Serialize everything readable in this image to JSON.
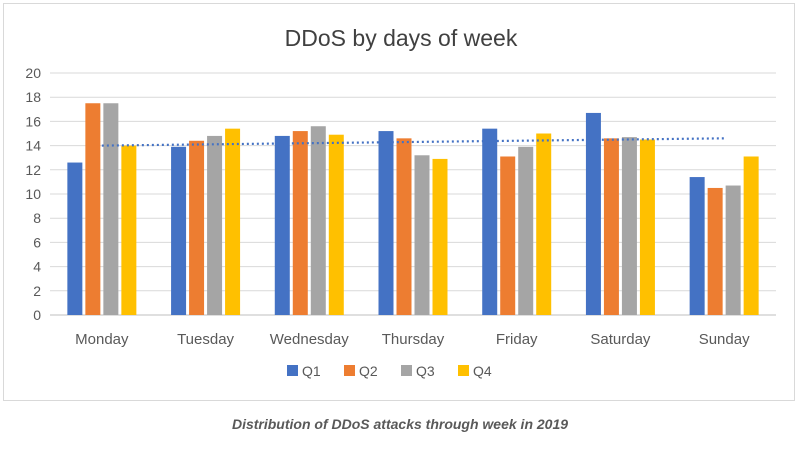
{
  "caption": "Distribution of DDoS attacks through week in 2019",
  "chart_data": {
    "type": "bar",
    "title": "DDoS by days of week",
    "xlabel": "",
    "ylabel": "",
    "categories": [
      "Monday",
      "Tuesday",
      "Wednesday",
      "Thursday",
      "Friday",
      "Saturday",
      "Sunday"
    ],
    "series": [
      {
        "name": "Q1",
        "color": "#4472c4",
        "values": [
          12.6,
          13.9,
          14.8,
          15.2,
          15.4,
          16.7,
          11.4
        ]
      },
      {
        "name": "Q2",
        "color": "#ed7d31",
        "values": [
          17.5,
          14.4,
          15.2,
          14.6,
          13.1,
          14.6,
          10.5
        ]
      },
      {
        "name": "Q3",
        "color": "#a5a5a5",
        "values": [
          17.5,
          14.8,
          15.6,
          13.2,
          13.9,
          14.7,
          10.7
        ]
      },
      {
        "name": "Q4",
        "color": "#ffc000",
        "values": [
          14.0,
          15.4,
          14.9,
          12.9,
          15.0,
          14.5,
          13.1
        ]
      }
    ],
    "trendline": {
      "style": "dotted",
      "color": "#4472c4",
      "start": 14.0,
      "end": 14.6
    },
    "ylim": [
      0,
      20
    ],
    "yticks": [
      0,
      2,
      4,
      6,
      8,
      10,
      12,
      14,
      16,
      18,
      20
    ],
    "grid": true,
    "legend": "bottom"
  }
}
